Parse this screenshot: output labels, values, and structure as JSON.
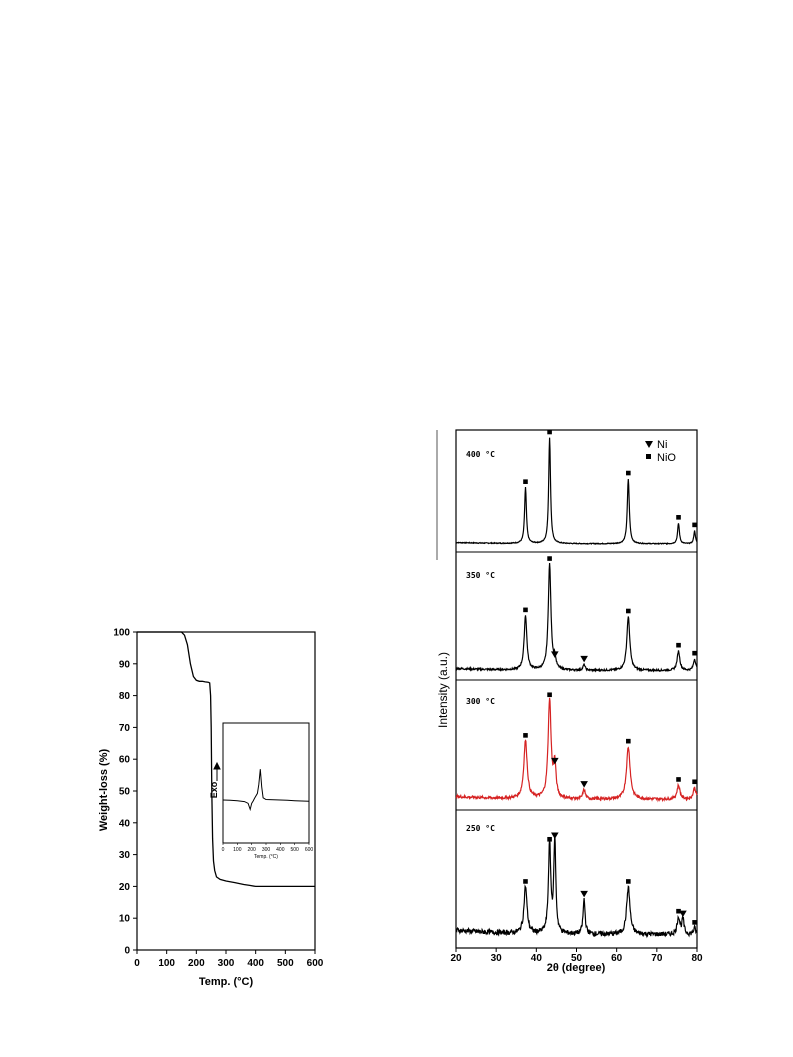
{
  "chart_data": [
    {
      "type": "line",
      "xlabel": "Temp. (°C)",
      "ylabel": "Weight-loss (%)",
      "xlim": [
        0,
        600
      ],
      "ylim": [
        0,
        100
      ],
      "xticks": [
        "0",
        "100",
        "200",
        "300",
        "400",
        "500",
        "600"
      ],
      "yticks": [
        "0",
        "10",
        "20",
        "30",
        "40",
        "50",
        "60",
        "70",
        "80",
        "90",
        "100"
      ],
      "series": [
        {
          "x": [
            0,
            150,
            160,
            170,
            180,
            190,
            200,
            210,
            220,
            230,
            240,
            245,
            248,
            250,
            252,
            255,
            258,
            262,
            268,
            280,
            300,
            330,
            360,
            380,
            400,
            450,
            500,
            550,
            600
          ],
          "values": [
            100,
            100,
            99,
            96,
            90,
            86,
            84.8,
            84.5,
            84.5,
            84.3,
            84.2,
            84,
            80,
            70,
            50,
            35,
            28,
            25,
            23,
            22.2,
            21.7,
            21.2,
            20.6,
            20.3,
            20,
            20,
            20,
            20,
            20
          ]
        }
      ],
      "inset": {
        "type": "line",
        "xlabel": "Temp. (°C)",
        "ylabel": "Exo",
        "xlim": [
          0,
          600
        ],
        "xticks": [
          "0",
          "100",
          "200",
          "300",
          "400",
          "500",
          "600"
        ],
        "series": [
          {
            "x": [
              0,
              50,
              100,
              150,
              175,
              190,
              200,
              210,
              220,
              240,
              250,
              260,
              270,
              280,
              300,
              350,
              400,
              450,
              500,
              550,
              600
            ],
            "values": [
              0,
              -0.03,
              -0.06,
              -0.15,
              -0.3,
              -0.85,
              -0.3,
              -0.1,
              0.15,
              0.6,
              1.4,
              2.8,
              1.2,
              0.2,
              0.05,
              0.02,
              0,
              -0.03,
              -0.06,
              -0.09,
              -0.12
            ]
          }
        ]
      }
    },
    {
      "type": "line",
      "xlabel": "2θ (degree)",
      "ylabel": "Intensity (a.u.)",
      "xlim": [
        20,
        80
      ],
      "xticks": [
        "20",
        "30",
        "40",
        "50",
        "60",
        "70",
        "80"
      ],
      "legend": {
        "placement": "top-right",
        "entries": [
          "Ni",
          "NiO"
        ]
      },
      "panels": [
        {
          "label": "400 °C",
          "color": "#000000",
          "baseline": 0.02,
          "noise": 0.004,
          "peaks": [
            {
              "x": 37.3,
              "h": 0.52,
              "w": 0.55,
              "marker": "NiO"
            },
            {
              "x": 43.3,
              "h": 0.98,
              "w": 0.55,
              "marker": "NiO"
            },
            {
              "x": 62.9,
              "h": 0.6,
              "w": 0.6,
              "marker": "NiO"
            },
            {
              "x": 75.4,
              "h": 0.19,
              "w": 0.55,
              "marker": "NiO"
            },
            {
              "x": 79.4,
              "h": 0.12,
              "w": 0.5,
              "marker": "NiO"
            }
          ]
        },
        {
          "label": "350 °C",
          "color": "#000000",
          "baseline": 0.03,
          "noise": 0.008,
          "peaks": [
            {
              "x": 37.3,
              "h": 0.48,
              "w": 0.8,
              "marker": "NiO"
            },
            {
              "x": 43.3,
              "h": 0.93,
              "w": 0.8,
              "marker": "NiO"
            },
            {
              "x": 44.6,
              "h": 0.09,
              "w": 0.6,
              "marker": "Ni"
            },
            {
              "x": 51.9,
              "h": 0.05,
              "w": 0.6,
              "marker": "Ni"
            },
            {
              "x": 62.9,
              "h": 0.47,
              "w": 0.9,
              "marker": "NiO"
            },
            {
              "x": 75.4,
              "h": 0.17,
              "w": 0.8,
              "marker": "NiO"
            },
            {
              "x": 79.4,
              "h": 0.1,
              "w": 0.7,
              "marker": "NiO"
            }
          ]
        },
        {
          "label": "300 °C",
          "color": "#d62222",
          "baseline": 0.04,
          "noise": 0.012,
          "peaks": [
            {
              "x": 37.3,
              "h": 0.5,
              "w": 1.0,
              "marker": "NiO"
            },
            {
              "x": 43.3,
              "h": 0.85,
              "w": 0.9,
              "marker": "NiO"
            },
            {
              "x": 44.6,
              "h": 0.28,
              "w": 0.7,
              "marker": "Ni"
            },
            {
              "x": 51.9,
              "h": 0.08,
              "w": 0.7,
              "marker": "Ni"
            },
            {
              "x": 62.9,
              "h": 0.45,
              "w": 1.1,
              "marker": "NiO"
            },
            {
              "x": 75.4,
              "h": 0.12,
              "w": 0.9,
              "marker": "NiO"
            },
            {
              "x": 79.4,
              "h": 0.1,
              "w": 0.8,
              "marker": "NiO"
            }
          ]
        },
        {
          "label": "250 °C",
          "color": "#000000",
          "baseline": 0.06,
          "noise": 0.02,
          "peaks": [
            {
              "x": 37.3,
              "h": 0.38,
              "w": 0.9,
              "marker": "NiO"
            },
            {
              "x": 43.3,
              "h": 0.72,
              "w": 0.7,
              "marker": "NiO"
            },
            {
              "x": 44.6,
              "h": 0.75,
              "w": 0.6,
              "marker": "Ni"
            },
            {
              "x": 51.9,
              "h": 0.28,
              "w": 0.6,
              "marker": "Ni"
            },
            {
              "x": 62.9,
              "h": 0.38,
              "w": 1.0,
              "marker": "NiO"
            },
            {
              "x": 75.4,
              "h": 0.14,
              "w": 0.8,
              "marker": "NiO"
            },
            {
              "x": 76.5,
              "h": 0.12,
              "w": 0.6,
              "marker": "Ni"
            },
            {
              "x": 79.4,
              "h": 0.05,
              "w": 0.7,
              "marker": "NiO"
            }
          ]
        }
      ]
    }
  ]
}
